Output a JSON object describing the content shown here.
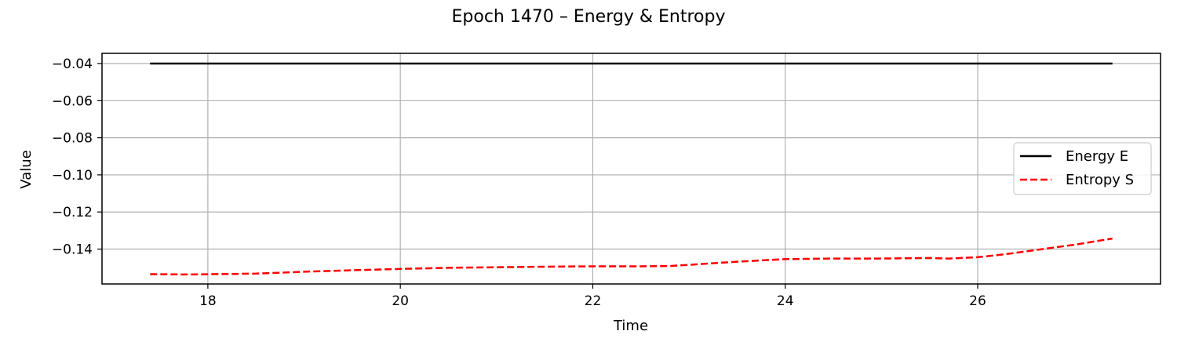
{
  "chart_data": {
    "type": "line",
    "title": "Epoch 1470 – Energy & Entropy",
    "xlabel": "Time",
    "ylabel": "Value",
    "xlim": [
      16.9,
      27.9
    ],
    "ylim": [
      -0.1588,
      -0.0345
    ],
    "xticks": [
      18,
      20,
      22,
      24,
      26
    ],
    "yticks": [
      -0.04,
      -0.06,
      -0.08,
      -0.1,
      -0.12,
      -0.14
    ],
    "xtick_labels": [
      "18",
      "20",
      "22",
      "24",
      "26"
    ],
    "ytick_labels": [
      "−0.04",
      "−0.06",
      "−0.08",
      "−0.10",
      "−0.12",
      "−0.14"
    ],
    "grid": true,
    "legend_position": "center-right",
    "series": [
      {
        "name": "Energy E",
        "color": "#000000",
        "style": "solid",
        "x": [
          17.4,
          18.0,
          19.0,
          20.0,
          21.0,
          22.0,
          23.0,
          24.0,
          25.0,
          26.0,
          27.4
        ],
        "y": [
          -0.04,
          -0.04,
          -0.04,
          -0.04,
          -0.04,
          -0.04,
          -0.04,
          -0.04,
          -0.04,
          -0.04,
          -0.04
        ]
      },
      {
        "name": "Entropy S",
        "color": "#ff0000",
        "style": "dashed",
        "x": [
          17.4,
          17.8,
          18.5,
          19.0,
          19.5,
          20.0,
          20.5,
          21.0,
          21.5,
          22.0,
          22.5,
          22.8,
          23.0,
          23.5,
          24.0,
          24.5,
          25.0,
          25.5,
          25.7,
          26.0,
          26.3,
          26.7,
          27.0,
          27.4
        ],
        "y": [
          -0.1535,
          -0.1537,
          -0.1532,
          -0.1522,
          -0.1514,
          -0.1507,
          -0.1501,
          -0.1498,
          -0.1495,
          -0.1493,
          -0.1493,
          -0.1491,
          -0.1485,
          -0.1468,
          -0.1454,
          -0.1451,
          -0.1451,
          -0.1448,
          -0.1451,
          -0.1444,
          -0.1427,
          -0.1398,
          -0.1377,
          -0.1343
        ]
      }
    ]
  }
}
